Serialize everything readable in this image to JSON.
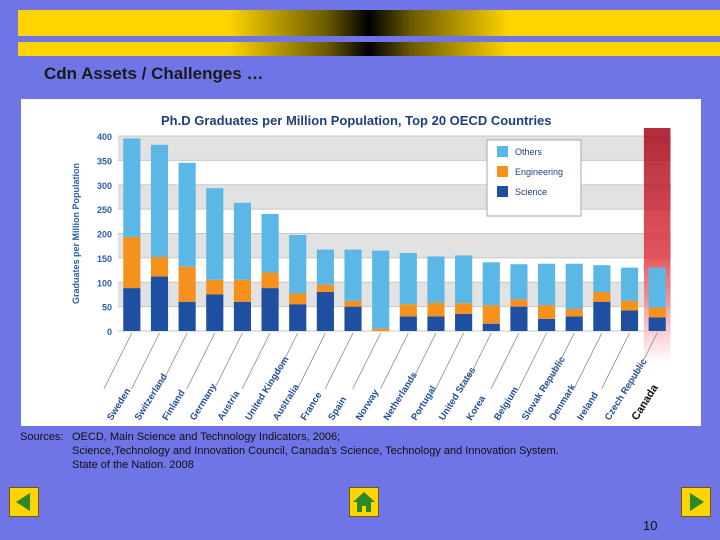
{
  "slide": {
    "title": "Cdn Assets / Challenges …",
    "page_number": "10",
    "sources_label": "Sources:",
    "sources_lines": [
      "OECD, Main Science and Technology Indicators, 2006;",
      "Science,Technology and Innovation Council, Canada's Science, Technology and Innovation System.",
      "State of the Nation. 2008"
    ],
    "colors": {
      "background": "#6f74e6",
      "accent": "#ffd400"
    },
    "nav": {
      "prev_icon": "left-arrow-icon",
      "home_icon": "home-icon",
      "next_icon": "right-arrow-icon"
    }
  },
  "chart_data": {
    "type": "bar",
    "stacked": true,
    "title": "Ph.D Graduates per Million Population, Top 20 OECD Countries",
    "ylabel": "Graduates per Million Population",
    "xlabel": "",
    "ylim": [
      0,
      400
    ],
    "yticks": [
      0,
      50,
      100,
      150,
      200,
      250,
      300,
      350,
      400
    ],
    "grid": true,
    "legend_position": "top-right",
    "categories": [
      "Sweden",
      "Switzerland",
      "Finland",
      "Germany",
      "Austria",
      "United Kingdom",
      "Australia",
      "France",
      "Spain",
      "Norway",
      "Netherlands",
      "Portugal",
      "United States",
      "Korea",
      "Belgium",
      "Slovak Republic",
      "Denmark",
      "Ireland",
      "Czech Republic",
      "Canada"
    ],
    "series": [
      {
        "name": "Science",
        "color": "#1f4fa0",
        "values": [
          88,
          112,
          60,
          75,
          60,
          88,
          55,
          80,
          50,
          0,
          30,
          30,
          35,
          15,
          50,
          25,
          30,
          60,
          42,
          28
        ]
      },
      {
        "name": "Engineering",
        "color": "#f5921e",
        "values": [
          105,
          40,
          72,
          30,
          45,
          32,
          22,
          15,
          12,
          5,
          25,
          28,
          22,
          38,
          15,
          28,
          15,
          20,
          20,
          20
        ]
      },
      {
        "name": "Others",
        "color": "#5bb8e6",
        "values": [
          202,
          230,
          213,
          188,
          158,
          120,
          120,
          72,
          105,
          160,
          105,
          95,
          98,
          88,
          72,
          85,
          93,
          55,
          68,
          82
        ]
      }
    ]
  }
}
